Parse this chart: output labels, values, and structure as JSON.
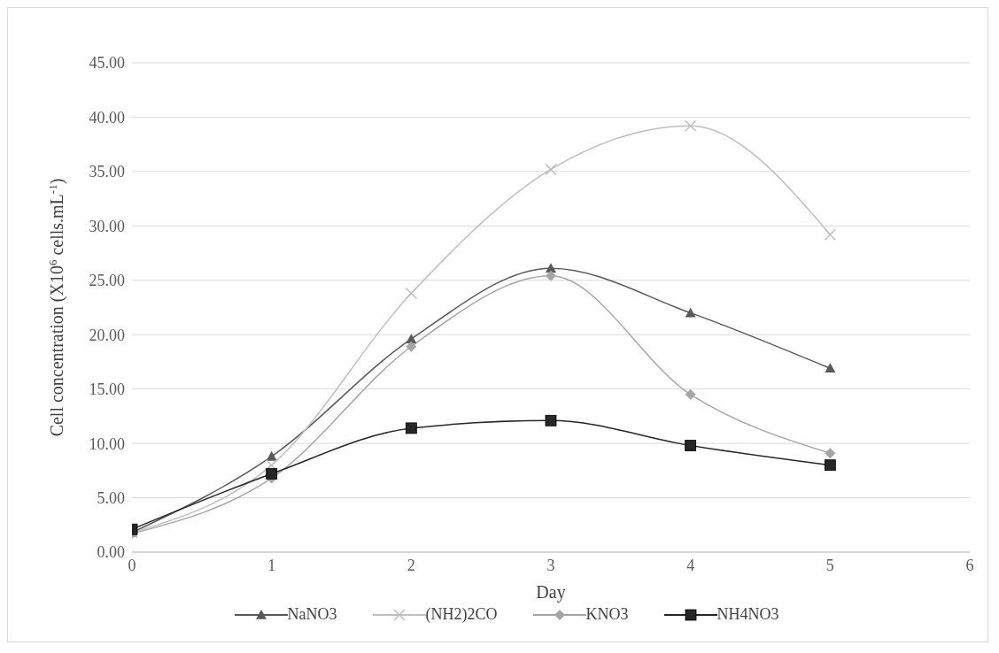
{
  "chart_data": {
    "type": "line",
    "xlabel": "Day",
    "ylabel": "Cell concentration (X10$^{6}$ cells.mL$^{-1}$)",
    "x": [
      0,
      1,
      2,
      3,
      4,
      5
    ],
    "series": [
      {
        "name": "NaNO3",
        "color": "#595959",
        "marker": "triangle",
        "values": [
          1.8,
          8.8,
          19.6,
          26.1,
          22.0,
          16.9
        ]
      },
      {
        "name": "(NH2)2CO",
        "color": "#bfbfbf",
        "marker": "cross",
        "values": [
          1.8,
          8.0,
          23.8,
          35.2,
          39.2,
          29.2
        ]
      },
      {
        "name": "KNO3",
        "color": "#a6a6a6",
        "marker": "diamond",
        "values": [
          1.7,
          6.8,
          18.9,
          25.4,
          14.5,
          9.1
        ]
      },
      {
        "name": "NH4NO3",
        "color": "#262626",
        "marker": "square",
        "values": [
          2.1,
          7.2,
          11.4,
          12.1,
          9.8,
          8.0
        ]
      }
    ],
    "xlim": [
      0,
      6
    ],
    "xticks": [
      0,
      1,
      2,
      3,
      4,
      5,
      6
    ],
    "ylim": [
      0,
      45
    ],
    "yticks": [
      {
        "value": 0,
        "label": "0.00"
      },
      {
        "value": 5,
        "label": "5.00"
      },
      {
        "value": 10,
        "label": "10.00"
      },
      {
        "value": 15,
        "label": "15.00"
      },
      {
        "value": 20,
        "label": "20.00"
      },
      {
        "value": 25,
        "label": "25.00"
      },
      {
        "value": 30,
        "label": "30.00"
      },
      {
        "value": 35,
        "label": "35.00"
      },
      {
        "value": 40,
        "label": "40.00"
      },
      {
        "value": 45,
        "label": "45.00"
      }
    ],
    "grid": "y",
    "legend": "bottom",
    "line_style": "solid"
  }
}
